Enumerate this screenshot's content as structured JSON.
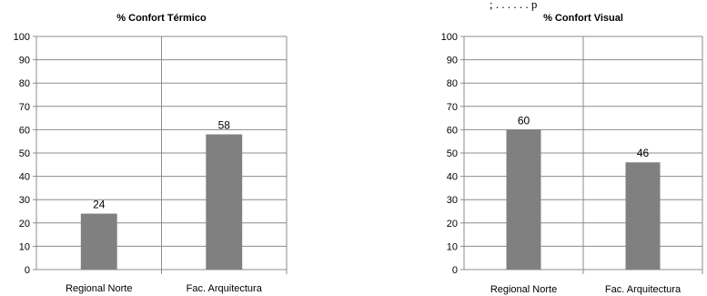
{
  "cropped_header_text": "; . . . . . . p",
  "chart_data": [
    {
      "type": "bar",
      "title": "% Confort Térmico",
      "xlabel": "",
      "ylabel": "",
      "categories": [
        "Regional Norte",
        "Fac. Arquitectura"
      ],
      "values": [
        24,
        58
      ],
      "ylim": [
        0,
        100
      ],
      "yticks": [
        "0",
        "10",
        "20",
        "30",
        "40",
        "50",
        "60",
        "70",
        "80",
        "90",
        "100"
      ],
      "data_labels": [
        "24",
        "58"
      ],
      "bar_color": "#808080",
      "grid": true,
      "legend": "none"
    },
    {
      "type": "bar",
      "title": "% Confort  Visual",
      "xlabel": "",
      "ylabel": "",
      "categories": [
        "Regional Norte",
        "Fac. Arquitectura"
      ],
      "values": [
        60,
        46
      ],
      "ylim": [
        0,
        100
      ],
      "yticks": [
        "0",
        "10",
        "20",
        "30",
        "40",
        "50",
        "60",
        "70",
        "80",
        "90",
        "100"
      ],
      "data_labels": [
        "60",
        "46"
      ],
      "bar_color": "#808080",
      "grid": true,
      "legend": "none"
    }
  ]
}
